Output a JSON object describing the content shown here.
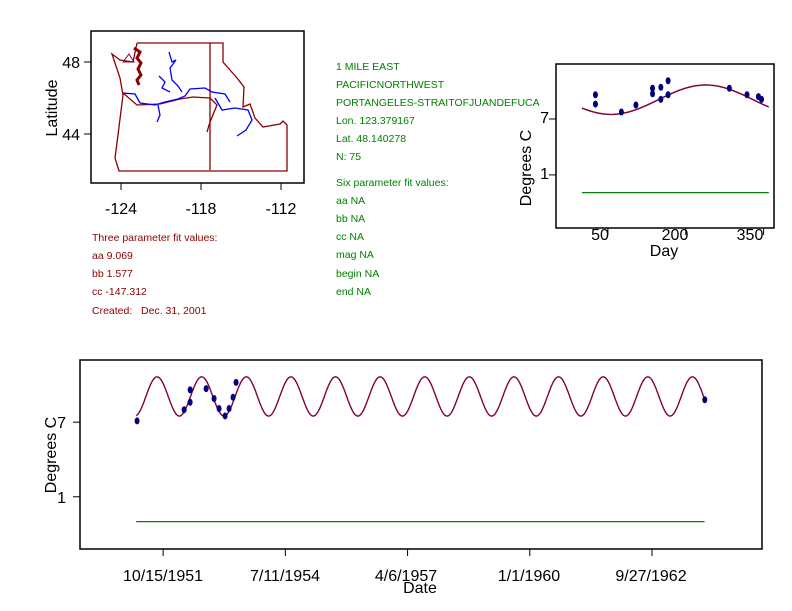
{
  "colors": {
    "fit": "#800040",
    "points": "#000080",
    "baseline": "#008000",
    "map_border": "#8b0000",
    "rivers": "#0000ff",
    "info_red": "#8b0000",
    "info_green": "#008000"
  },
  "map": {
    "ylabel": "Latitude",
    "xticks": [
      "-124",
      "-118",
      "-112"
    ],
    "yticks": [
      "48",
      "44"
    ]
  },
  "three_param": {
    "title": "Three parameter fit values:",
    "aa": "aa 9.069",
    "bb": "bb 1.577",
    "cc": "cc -147.312",
    "created": "Created:   Dec. 31, 2001"
  },
  "station": {
    "l1": "1 MILE EAST",
    "l2": "PACIFICNORTHWEST",
    "l3": "PORTANGELES-STRAITOFJUANDEFUCA",
    "lon": "Lon. 123.379167",
    "lat": "Lat. 48.140278",
    "n": "N: 75"
  },
  "six_param": {
    "title": "Six parameter fit values:",
    "aa": "aa NA",
    "bb": "bb NA",
    "cc": "cc NA",
    "mag": "mag NA",
    "begin": "begin NA",
    "end": "end NA"
  },
  "chart_data": [
    {
      "type": "scatter",
      "title": "",
      "xlabel": "Day",
      "ylabel": "Degrees C",
      "xlim": [
        -50,
        370
      ],
      "ylim": [
        -4.7,
        12.9
      ],
      "xticks": [
        "50",
        "200",
        "350"
      ],
      "yticks": [
        "7",
        "1"
      ],
      "fit": {
        "aa": 9.069,
        "bb": 1.577,
        "cc": -147.312,
        "x_range": [
          0,
          360
        ]
      },
      "baseline": {
        "value": -0.9,
        "x_range": [
          0,
          360
        ]
      },
      "points": [
        [
          26,
          9.6
        ],
        [
          26,
          8.6
        ],
        [
          76,
          7.75
        ],
        [
          104,
          8.5
        ],
        [
          136,
          10.3
        ],
        [
          136,
          9.7
        ],
        [
          152,
          10.4
        ],
        [
          152,
          9.1
        ],
        [
          166,
          11.1
        ],
        [
          166,
          9.6
        ],
        [
          284,
          10.3
        ],
        [
          318,
          9.6
        ],
        [
          340,
          9.4
        ],
        [
          346,
          9.1
        ]
      ]
    },
    {
      "type": "scatter",
      "title": "",
      "xlabel": "Date",
      "ylabel": "Degrees C",
      "x_units": "days since 10/15/1951",
      "xlim": [
        -680,
        4900
      ],
      "ylim": [
        -3.2,
        12.0
      ],
      "xticks": [
        {
          "label": "10/15/1951",
          "value": 0
        },
        {
          "label": "7/11/1954",
          "value": 1000
        },
        {
          "label": "4/6/1957",
          "value": 2000
        },
        {
          "label": "1/1/1960",
          "value": 3000
        },
        {
          "label": "9/27/1962",
          "value": 4000
        }
      ],
      "yticks": [
        "7",
        "1"
      ],
      "start_day_of_year": 288,
      "fit": {
        "x_range": [
          -220,
          4430
        ]
      },
      "baseline": {
        "value": -1,
        "x_range": [
          -220,
          4430
        ]
      },
      "points": [
        [
          -213,
          7.1
        ],
        [
          172,
          8.0
        ],
        [
          221,
          9.6
        ],
        [
          221,
          8.6
        ],
        [
          352,
          9.7
        ],
        [
          417,
          8.9
        ],
        [
          458,
          8.1
        ],
        [
          507,
          7.5
        ],
        [
          540,
          8.1
        ],
        [
          572,
          9.0
        ],
        [
          597,
          10.2
        ],
        [
          4432,
          8.8
        ]
      ]
    }
  ]
}
